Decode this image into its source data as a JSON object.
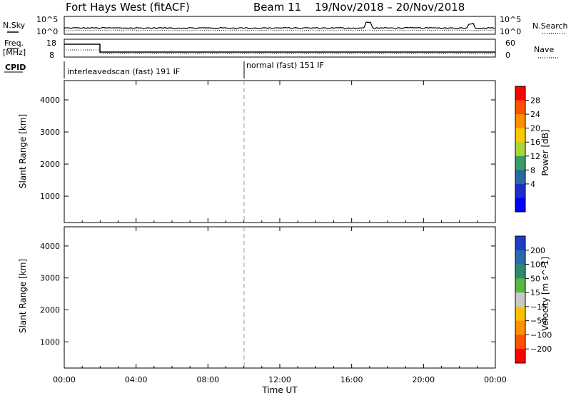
{
  "header": {
    "station": "Fort Hays West (fitACF)",
    "beam": "Beam 11",
    "daterange": "19/Nov/2018 – 20/Nov/2018"
  },
  "strips": {
    "nsky_label": "N.Sky",
    "nsearch_label": "N.Search",
    "freq_label_1": "Freq.",
    "freq_label_2": "[MHz]",
    "nave_label": "Nave",
    "cpid_label": "CPID",
    "noise_ticks": [
      "10^5",
      "10^0"
    ],
    "noise_right_ticks": [
      "10^5",
      "10^0"
    ],
    "freq_ticks": [
      "18",
      "8"
    ],
    "nave_ticks": [
      "60",
      "0"
    ],
    "cpid_modes": [
      {
        "label": "interleavedscan (fast) 191 IF",
        "start_hour": 0
      },
      {
        "label": "normal (fast) 151 IF",
        "start_hour": 10
      }
    ]
  },
  "chart_data": [
    {
      "type": "heatmap",
      "name": "power",
      "ylabel": "Slant Range [km]",
      "ylim": [
        180,
        4600
      ],
      "yticks": [
        1000,
        2000,
        3000,
        4000
      ],
      "xlim": [
        0,
        24
      ],
      "xticks_hours": [
        0,
        4,
        8,
        12,
        16,
        20,
        24
      ],
      "colorbar": {
        "label": "Power [dB]",
        "ticks": [
          "28",
          "24",
          "20",
          "16",
          "12",
          "8",
          "4"
        ],
        "colors": [
          "#ff0000",
          "#ff5000",
          "#ff9000",
          "#ffc800",
          "#a8d838",
          "#3a9a6a",
          "#2a6aa0",
          "#1a30c8",
          "#0000ff"
        ]
      }
    },
    {
      "type": "heatmap",
      "name": "velocity",
      "ylabel": "Slant Range [km]",
      "ylim": [
        180,
        4600
      ],
      "yticks": [
        1000,
        2000,
        3000,
        4000
      ],
      "xlim": [
        0,
        24
      ],
      "xticks_hours": [
        0,
        4,
        8,
        12,
        16,
        20,
        24
      ],
      "xlabel": "Time UT",
      "xtick_labels": [
        "00:00",
        "04:00",
        "08:00",
        "12:00",
        "16:00",
        "20:00",
        "00:00"
      ],
      "colorbar": {
        "label": "Velocity [m s^-1]",
        "ticks": [
          "200",
          "100",
          "50",
          "15",
          "-15",
          "-50",
          "-100",
          "-200"
        ],
        "colors": [
          "#1e3cc8",
          "#2a6ab0",
          "#2e8a6a",
          "#58b840",
          "#c8c8c8",
          "#ffc000",
          "#ff9000",
          "#ff5000",
          "#ff0000"
        ]
      }
    }
  ]
}
